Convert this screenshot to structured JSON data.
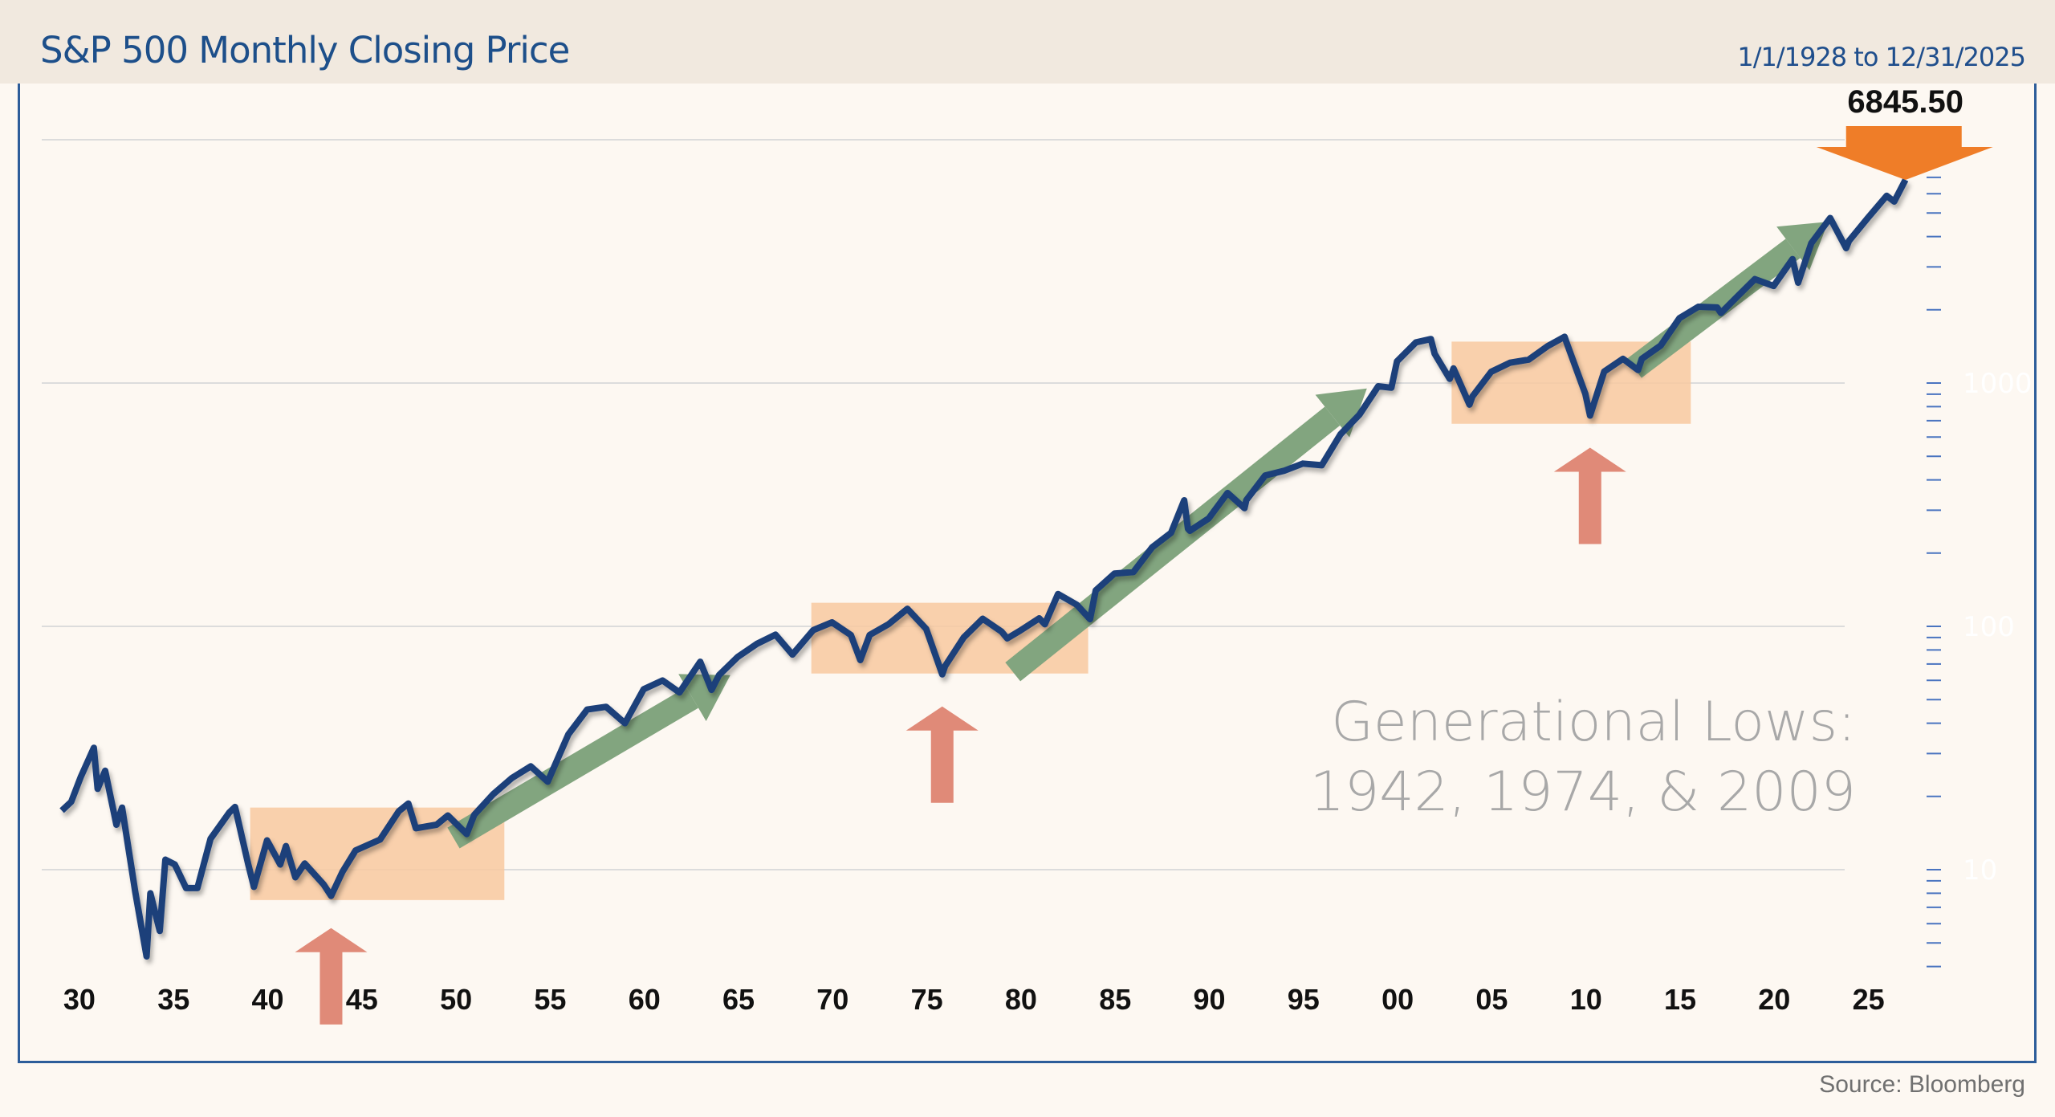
{
  "header": {
    "title": "S&P 500 Monthly Closing Price",
    "date_range": "1/1/1928 to 12/31/2025"
  },
  "source": "Source: Bloomberg",
  "colors": {
    "line": "#1d3f7a",
    "box": "#f8c9a0",
    "up_arrow": "#82a57f",
    "low_arrow": "#e08a78",
    "last_marker": "#ef7d28",
    "annotation": "#a8a8a8",
    "header_bg": "#f1e9df"
  },
  "chart_data": {
    "type": "line",
    "title": "S&P 500 Monthly Closing Price",
    "y_scale": "log",
    "ylim": [
      4,
      10000
    ],
    "xlim": [
      1928,
      2025.9
    ],
    "grid": true,
    "y_tick_labels": [
      "10",
      "100",
      "1000"
    ],
    "y_gridlines": [
      10,
      100,
      1000,
      10000
    ],
    "x_tick_labels": [
      {
        "year": 1930,
        "label": "30"
      },
      {
        "year": 1935,
        "label": "35"
      },
      {
        "year": 1940,
        "label": "40"
      },
      {
        "year": 1945,
        "label": "45"
      },
      {
        "year": 1950,
        "label": "50"
      },
      {
        "year": 1955,
        "label": "55"
      },
      {
        "year": 1960,
        "label": "60"
      },
      {
        "year": 1965,
        "label": "65"
      },
      {
        "year": 1970,
        "label": "70"
      },
      {
        "year": 1975,
        "label": "75"
      },
      {
        "year": 1980,
        "label": "80"
      },
      {
        "year": 1985,
        "label": "85"
      },
      {
        "year": 1990,
        "label": "90"
      },
      {
        "year": 1995,
        "label": "95"
      },
      {
        "year": 2000,
        "label": "00"
      },
      {
        "year": 2005,
        "label": "05"
      },
      {
        "year": 2010,
        "label": "10"
      },
      {
        "year": 2015,
        "label": "15"
      },
      {
        "year": 2020,
        "label": "20"
      },
      {
        "year": 2025,
        "label": "25"
      }
    ],
    "last_value_label": "6845.50",
    "annotation": [
      "Generational Lows:",
      "1942, 1974, & 2009"
    ],
    "highlight_ranges": [
      {
        "from": 1938,
        "to": 1951.5,
        "low": 7.5,
        "high": 18
      },
      {
        "from": 1967.8,
        "to": 1982.5,
        "low": 64,
        "high": 125
      },
      {
        "from": 2001.8,
        "to": 2014.5,
        "low": 680,
        "high": 1480
      }
    ],
    "generational_lows": [
      1942.3,
      1974.75,
      2009.15
    ],
    "trend_arrows": [
      {
        "from": [
          1948.8,
          13.5
        ],
        "to": [
          1963.5,
          63
        ]
      },
      {
        "from": [
          1978.5,
          65
        ],
        "to": [
          1997.3,
          950
        ]
      },
      {
        "from": [
          2011.5,
          1150
        ],
        "to": [
          2021.8,
          4600
        ]
      }
    ],
    "series": [
      {
        "points": [
          [
            1928,
            17.5
          ],
          [
            1928.5,
            19
          ],
          [
            1929,
            24
          ],
          [
            1929.7,
            31.7
          ],
          [
            1929.9,
            21.5
          ],
          [
            1930.3,
            25.5
          ],
          [
            1930.9,
            15.3
          ],
          [
            1931.2,
            18
          ],
          [
            1931.9,
            8.1
          ],
          [
            1932.5,
            4.4
          ],
          [
            1932.7,
            8
          ],
          [
            1933.2,
            5.6
          ],
          [
            1933.5,
            11
          ],
          [
            1934,
            10.5
          ],
          [
            1934.6,
            8.4
          ],
          [
            1935.2,
            8.4
          ],
          [
            1935.9,
            13.4
          ],
          [
            1936.9,
            17.2
          ],
          [
            1937.2,
            18.1
          ],
          [
            1937.9,
            10.5
          ],
          [
            1938.2,
            8.5
          ],
          [
            1938.9,
            13.2
          ],
          [
            1939.6,
            10.5
          ],
          [
            1939.9,
            12.5
          ],
          [
            1940.4,
            9.3
          ],
          [
            1940.9,
            10.6
          ],
          [
            1941.9,
            8.7
          ],
          [
            1942.3,
            7.8
          ],
          [
            1942.9,
            9.8
          ],
          [
            1943.6,
            12
          ],
          [
            1944.9,
            13.3
          ],
          [
            1945.9,
            17.4
          ],
          [
            1946.4,
            18.7
          ],
          [
            1946.8,
            14.8
          ],
          [
            1947.9,
            15.3
          ],
          [
            1948.5,
            16.7
          ],
          [
            1949.5,
            14
          ],
          [
            1949.9,
            16.8
          ],
          [
            1950.9,
            20.4
          ],
          [
            1951.9,
            23.8
          ],
          [
            1952.9,
            26.6
          ],
          [
            1953.8,
            23
          ],
          [
            1954.9,
            36
          ],
          [
            1955.9,
            45.5
          ],
          [
            1956.9,
            46.7
          ],
          [
            1957.9,
            40
          ],
          [
            1958.9,
            55.2
          ],
          [
            1959.9,
            59.9
          ],
          [
            1960.8,
            53.5
          ],
          [
            1961.9,
            71.5
          ],
          [
            1962.5,
            54.8
          ],
          [
            1962.9,
            63.1
          ],
          [
            1963.9,
            75
          ],
          [
            1964.9,
            84.7
          ],
          [
            1965.9,
            92.4
          ],
          [
            1966.8,
            76.6
          ],
          [
            1967.9,
            96.5
          ],
          [
            1968.9,
            103.9
          ],
          [
            1969.9,
            92.1
          ],
          [
            1970.4,
            72.7
          ],
          [
            1970.9,
            92.2
          ],
          [
            1971.9,
            102.1
          ],
          [
            1972.9,
            118.1
          ],
          [
            1973.9,
            97.6
          ],
          [
            1974.75,
            63.5
          ],
          [
            1974.9,
            68.6
          ],
          [
            1975.9,
            90.2
          ],
          [
            1976.9,
            107.5
          ],
          [
            1977.9,
            95.1
          ],
          [
            1978.2,
            89.2
          ],
          [
            1978.9,
            96.1
          ],
          [
            1979.9,
            107.9
          ],
          [
            1980.2,
            102
          ],
          [
            1980.9,
            135.8
          ],
          [
            1981.9,
            122.6
          ],
          [
            1982.6,
            107
          ],
          [
            1982.9,
            140.6
          ],
          [
            1983.9,
            164.9
          ],
          [
            1984.9,
            167.2
          ],
          [
            1985.9,
            211.3
          ],
          [
            1986.9,
            242.2
          ],
          [
            1987.6,
            329.8
          ],
          [
            1987.8,
            251.8
          ],
          [
            1987.9,
            247
          ],
          [
            1988.9,
            277.7
          ],
          [
            1989.9,
            353.4
          ],
          [
            1990.8,
            306
          ],
          [
            1990.9,
            330.2
          ],
          [
            1991.9,
            417.1
          ],
          [
            1992.9,
            435.7
          ],
          [
            1993.9,
            466.5
          ],
          [
            1994.9,
            459.3
          ],
          [
            1995.9,
            615.9
          ],
          [
            1996.9,
            740.7
          ],
          [
            1997.9,
            970.4
          ],
          [
            1998.6,
            957
          ],
          [
            1998.9,
            1229
          ],
          [
            1999.9,
            1469
          ],
          [
            2000.7,
            1517
          ],
          [
            2000.9,
            1320
          ],
          [
            2001.7,
            1040
          ],
          [
            2001.9,
            1148
          ],
          [
            2002.75,
            815
          ],
          [
            2002.9,
            880
          ],
          [
            2003.9,
            1112
          ],
          [
            2004.9,
            1212
          ],
          [
            2005.9,
            1248
          ],
          [
            2006.9,
            1418
          ],
          [
            2007.8,
            1549
          ],
          [
            2007.9,
            1468
          ],
          [
            2008.9,
            903
          ],
          [
            2009.15,
            735
          ],
          [
            2009.9,
            1115
          ],
          [
            2010.9,
            1258
          ],
          [
            2011.7,
            1131
          ],
          [
            2011.9,
            1258
          ],
          [
            2012.9,
            1426
          ],
          [
            2013.9,
            1848
          ],
          [
            2014.9,
            2059
          ],
          [
            2015.9,
            2044
          ],
          [
            2016.1,
            1940
          ],
          [
            2016.9,
            2239
          ],
          [
            2017.9,
            2674
          ],
          [
            2018.9,
            2507
          ],
          [
            2019.9,
            3231
          ],
          [
            2020.2,
            2585
          ],
          [
            2020.9,
            3756
          ],
          [
            2021.9,
            4766
          ],
          [
            2022.75,
            3586
          ],
          [
            2022.9,
            3840
          ],
          [
            2023.9,
            4770
          ],
          [
            2024.9,
            5882
          ],
          [
            2025.3,
            5570
          ],
          [
            2025.9,
            6845.5
          ]
        ]
      }
    ]
  }
}
